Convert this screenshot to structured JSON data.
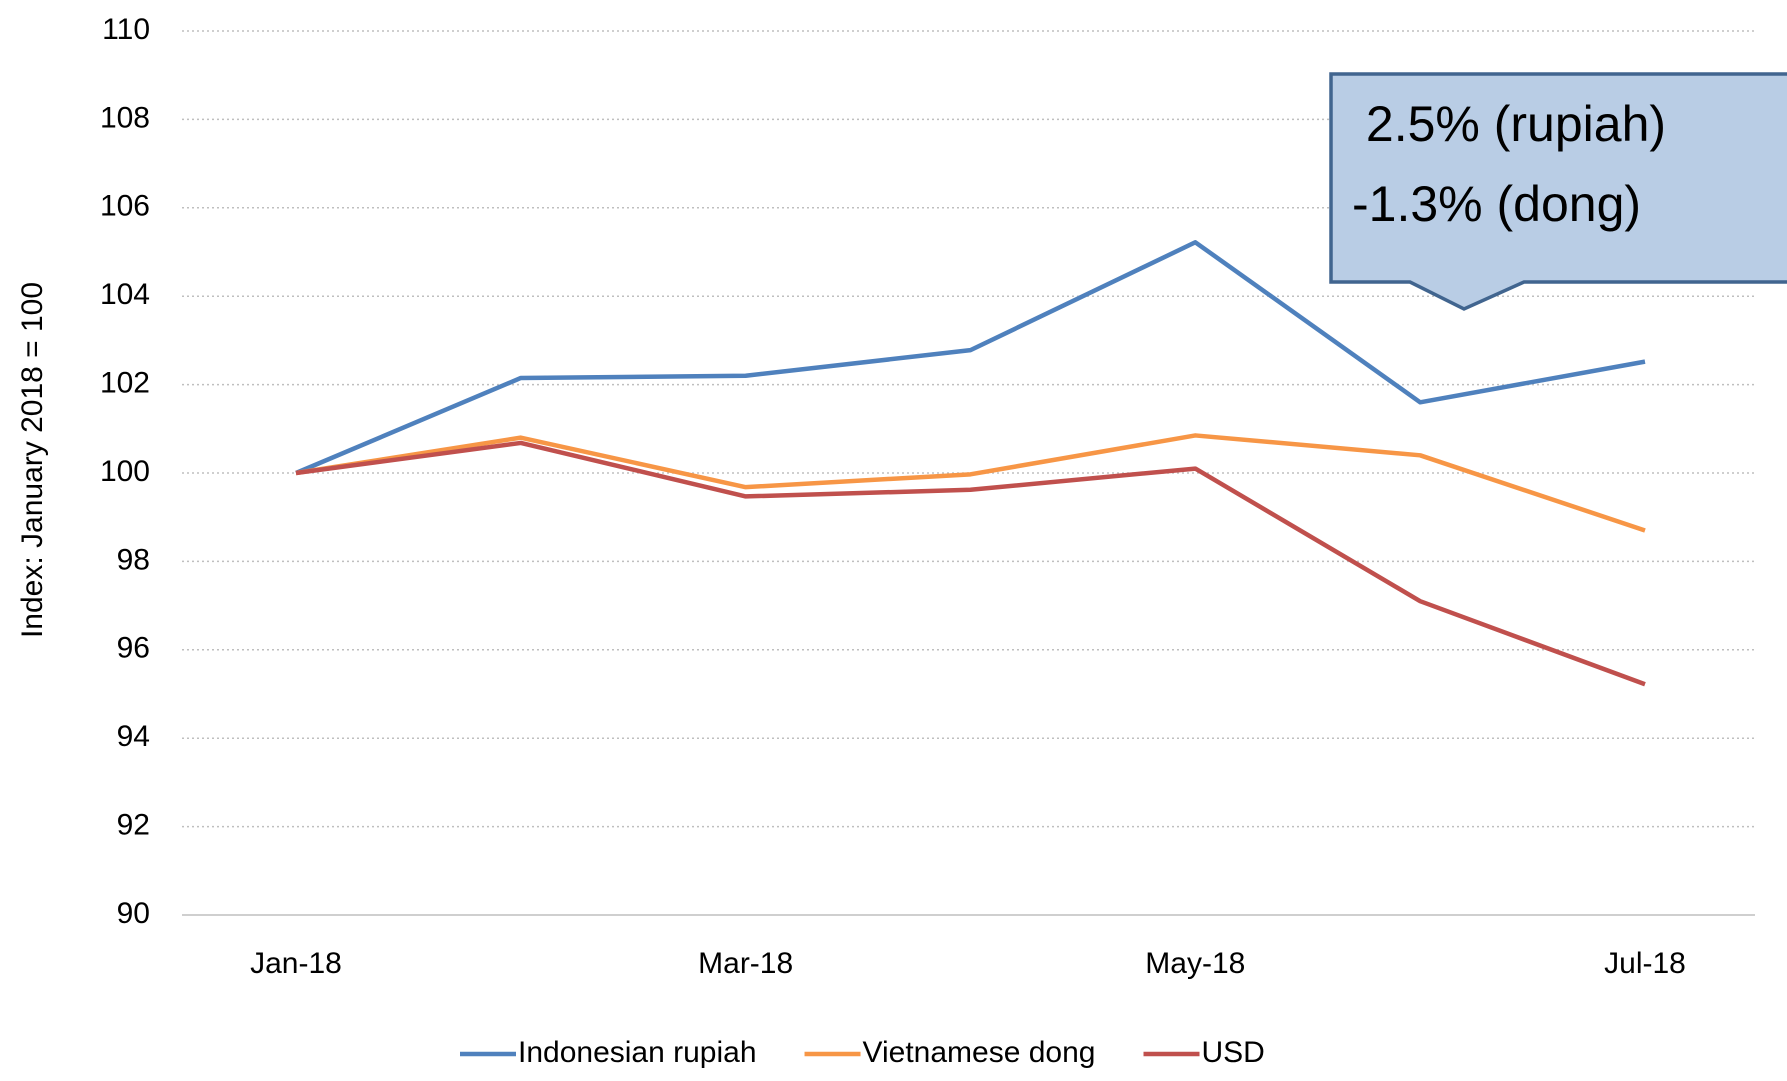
{
  "chart_data": {
    "type": "line",
    "y_label": "Index: January 2018 = 100",
    "categories": [
      "Jan-18",
      null,
      "Mar-18",
      null,
      "May-18",
      null,
      "Jul-18"
    ],
    "series": [
      {
        "name": "Indonesian rupiah",
        "color": "#4f81bd",
        "values": [
          100,
          102.15,
          102.2,
          102.78,
          105.22,
          101.6,
          102.52
        ]
      },
      {
        "name": "Vietnamese dong",
        "color": "#f79646",
        "values": [
          100,
          100.8,
          99.68,
          99.97,
          100.85,
          100.4,
          98.7
        ]
      },
      {
        "name": "USD",
        "color": "#c0504d",
        "values": [
          100,
          100.68,
          99.47,
          99.62,
          100.1,
          97.1,
          95.22
        ]
      }
    ],
    "ylim": [
      90,
      110
    ],
    "yticks": [
      90,
      92,
      94,
      96,
      98,
      100,
      102,
      104,
      106,
      108,
      110
    ],
    "grid": true,
    "legend": "bottom",
    "annotation": [
      " 2.5% (rupiah)",
      "-1.3% (dong)"
    ]
  }
}
